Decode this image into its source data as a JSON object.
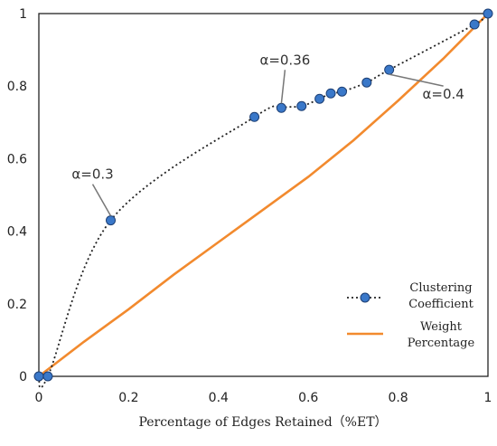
{
  "chart_data": {
    "type": "line",
    "title": "",
    "xlabel": "Percentage of Edges Retained（%ET）",
    "ylabel": "",
    "xlim": [
      0,
      1
    ],
    "ylim": [
      0,
      1
    ],
    "x_ticks": [
      "0",
      "0.2",
      "0.4",
      "0.6",
      "0.8",
      "1"
    ],
    "y_ticks": [
      "0",
      "0.2",
      "0.4",
      "0.6",
      "0.8",
      "1"
    ],
    "grid": false,
    "legend_position": "bottom-right",
    "series": [
      {
        "name": "Clustering Coefficient",
        "style": "dotted-line-with-markers",
        "color": "#222222",
        "marker_color": "#3a78c9",
        "points": [
          {
            "x": 0.0,
            "y": 0.0
          },
          {
            "x": 0.02,
            "y": 0.0
          },
          {
            "x": 0.16,
            "y": 0.43
          },
          {
            "x": 0.48,
            "y": 0.715
          },
          {
            "x": 0.54,
            "y": 0.74
          },
          {
            "x": 0.585,
            "y": 0.745
          },
          {
            "x": 0.625,
            "y": 0.765
          },
          {
            "x": 0.65,
            "y": 0.78
          },
          {
            "x": 0.675,
            "y": 0.785
          },
          {
            "x": 0.73,
            "y": 0.81
          },
          {
            "x": 0.78,
            "y": 0.845
          },
          {
            "x": 0.97,
            "y": 0.97
          },
          {
            "x": 1.0,
            "y": 1.0
          }
        ]
      },
      {
        "name": "Weight Percentage",
        "style": "solid-line",
        "color": "#f28a2e",
        "points": [
          {
            "x": 0.0,
            "y": 0.0
          },
          {
            "x": 0.1,
            "y": 0.095
          },
          {
            "x": 0.2,
            "y": 0.185
          },
          {
            "x": 0.3,
            "y": 0.28
          },
          {
            "x": 0.4,
            "y": 0.37
          },
          {
            "x": 0.5,
            "y": 0.46
          },
          {
            "x": 0.6,
            "y": 0.55
          },
          {
            "x": 0.7,
            "y": 0.65
          },
          {
            "x": 0.8,
            "y": 0.76
          },
          {
            "x": 0.9,
            "y": 0.875
          },
          {
            "x": 1.0,
            "y": 1.0
          }
        ]
      }
    ],
    "annotations": [
      {
        "text": "α=0.3",
        "x": 0.16,
        "y": 0.43
      },
      {
        "text": "α=0.36",
        "x": 0.54,
        "y": 0.74
      },
      {
        "text": "α=0.4",
        "x": 0.78,
        "y": 0.845
      }
    ]
  },
  "legend": {
    "items": [
      {
        "line1": "Clustering",
        "line2": "Coefficient"
      },
      {
        "line1": "Weight",
        "line2": "Percentage"
      }
    ]
  }
}
